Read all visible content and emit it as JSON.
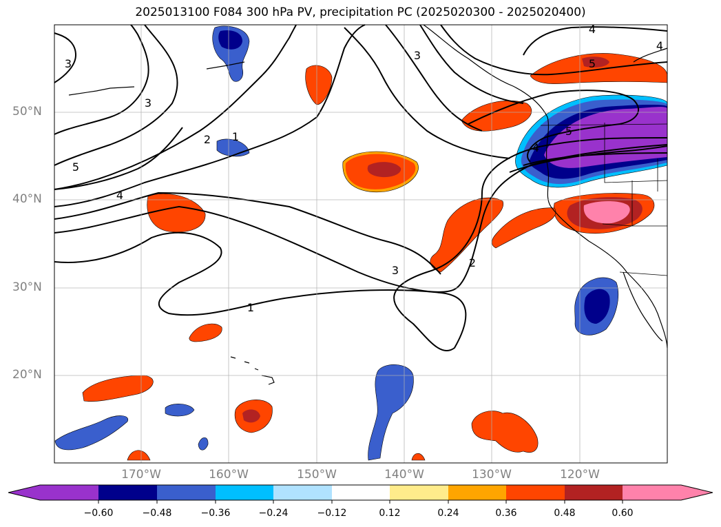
{
  "title": "2025013100 F084 300 hPa PV, precipitation PC (2025020300 - 2025020400)",
  "lat_labels": [
    "50°N",
    "40°N",
    "30°N",
    "20°N"
  ],
  "lon_labels": [
    "170°W",
    "160°W",
    "150°W",
    "140°W",
    "130°W",
    "120°W"
  ],
  "contour_labels": [
    "3",
    "3",
    "2",
    "1",
    "5",
    "4",
    "3",
    "2",
    "1",
    "3",
    "4",
    "4",
    "5",
    "5",
    "4"
  ],
  "colorbar": {
    "tick_labels": [
      "−0.60",
      "−0.48",
      "−0.36",
      "−0.24",
      "−0.12",
      "0.12",
      "0.24",
      "0.36",
      "0.48",
      "0.60"
    ],
    "colors": [
      "#9932cc",
      "#00008b",
      "#3a5fcd",
      "#00bfff",
      "#b0e2ff",
      "#ffffff",
      "#ffec8b",
      "#ffa500",
      "#ff4500",
      "#b22222",
      "#ff82ab"
    ]
  }
}
